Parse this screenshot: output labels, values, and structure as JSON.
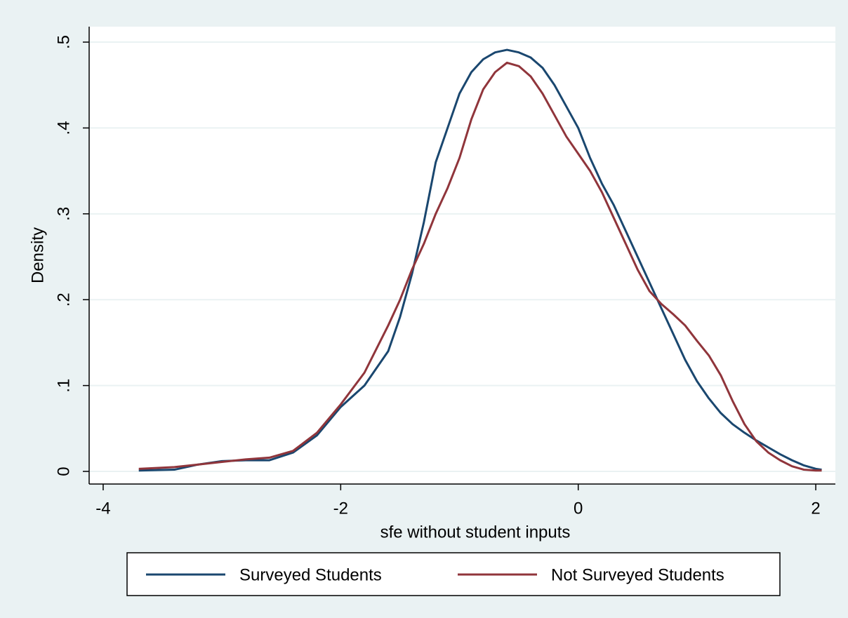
{
  "chart_data": {
    "type": "line",
    "x_label": "sfe without student inputs",
    "y_label": "Density",
    "x": [
      -3.7,
      -3.4,
      -3.2,
      -3.0,
      -2.8,
      -2.6,
      -2.4,
      -2.2,
      -2.0,
      -1.8,
      -1.6,
      -1.5,
      -1.4,
      -1.3,
      -1.2,
      -1.1,
      -1.0,
      -0.9,
      -0.8,
      -0.7,
      -0.6,
      -0.5,
      -0.4,
      -0.3,
      -0.2,
      -0.1,
      0.0,
      0.1,
      0.2,
      0.3,
      0.4,
      0.5,
      0.6,
      0.7,
      0.8,
      0.9,
      1.0,
      1.1,
      1.2,
      1.3,
      1.4,
      1.5,
      1.6,
      1.7,
      1.8,
      1.9,
      2.0,
      2.05
    ],
    "series": [
      {
        "name": "Surveyed Students",
        "color": "#1a476f",
        "values": [
          0.001,
          0.002,
          0.008,
          0.012,
          0.013,
          0.013,
          0.022,
          0.042,
          0.075,
          0.1,
          0.14,
          0.18,
          0.23,
          0.29,
          0.36,
          0.4,
          0.44,
          0.465,
          0.48,
          0.488,
          0.491,
          0.488,
          0.482,
          0.47,
          0.45,
          0.425,
          0.4,
          0.365,
          0.335,
          0.31,
          0.28,
          0.25,
          0.22,
          0.19,
          0.16,
          0.13,
          0.105,
          0.085,
          0.068,
          0.055,
          0.045,
          0.036,
          0.028,
          0.02,
          0.013,
          0.007,
          0.003,
          0.002
        ]
      },
      {
        "name": "Not Surveyed Students",
        "color": "#90353b",
        "values": [
          0.003,
          0.005,
          0.008,
          0.011,
          0.014,
          0.016,
          0.024,
          0.045,
          0.078,
          0.115,
          0.17,
          0.2,
          0.235,
          0.265,
          0.3,
          0.33,
          0.365,
          0.41,
          0.445,
          0.465,
          0.476,
          0.472,
          0.46,
          0.44,
          0.415,
          0.39,
          0.37,
          0.35,
          0.325,
          0.295,
          0.265,
          0.235,
          0.21,
          0.195,
          0.183,
          0.17,
          0.152,
          0.135,
          0.112,
          0.082,
          0.055,
          0.035,
          0.022,
          0.013,
          0.006,
          0.002,
          0.001,
          0.001
        ]
      }
    ],
    "xlim": [
      -4.118,
      2.165
    ],
    "ylim": [
      -0.0147,
      0.518
    ],
    "xticks": [
      -4,
      -2,
      0,
      2
    ],
    "yticks": [
      0,
      {
        "value": 0.1,
        "label": ".1"
      },
      {
        "value": 0.2,
        "label": ".2"
      },
      {
        "value": 0.3,
        "label": ".3"
      },
      {
        "value": 0.4,
        "label": ".4"
      },
      {
        "value": 0.5,
        "label": ".5"
      }
    ],
    "grid": true,
    "legend": "bottom"
  }
}
